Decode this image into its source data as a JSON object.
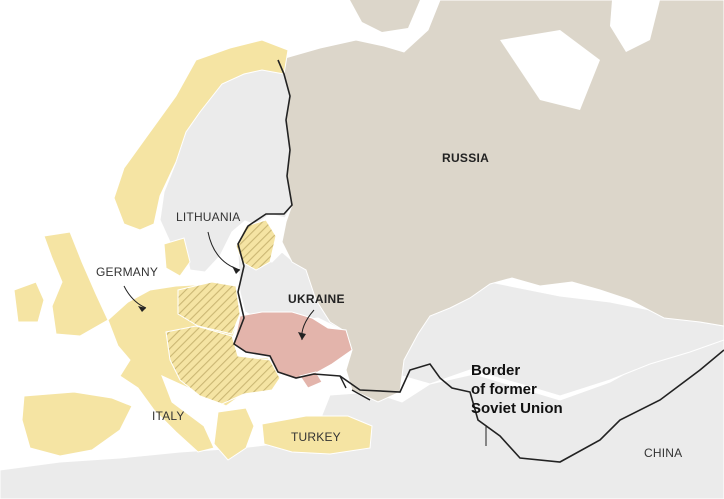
{
  "map": {
    "labels": {
      "russia": "RUSSIA",
      "ukraine": "UKRAINE",
      "lithuania": "LITHUANIA",
      "germany": "GERMANY",
      "italy": "ITALY",
      "turkey": "TURKEY",
      "china": "CHINA"
    },
    "border_annotation": [
      "Border",
      "of former",
      "Soviet Union"
    ],
    "colors": {
      "sea": "#ffffff",
      "non_member_land": "#ebebeb",
      "russia": "#dcd6ca",
      "eu_member": "#f5e4a3",
      "highlight_ukraine": "#e3b4ab",
      "hatching": "#cbb774",
      "soviet_border": "#222222",
      "country_borders": "#ffffff"
    }
  }
}
